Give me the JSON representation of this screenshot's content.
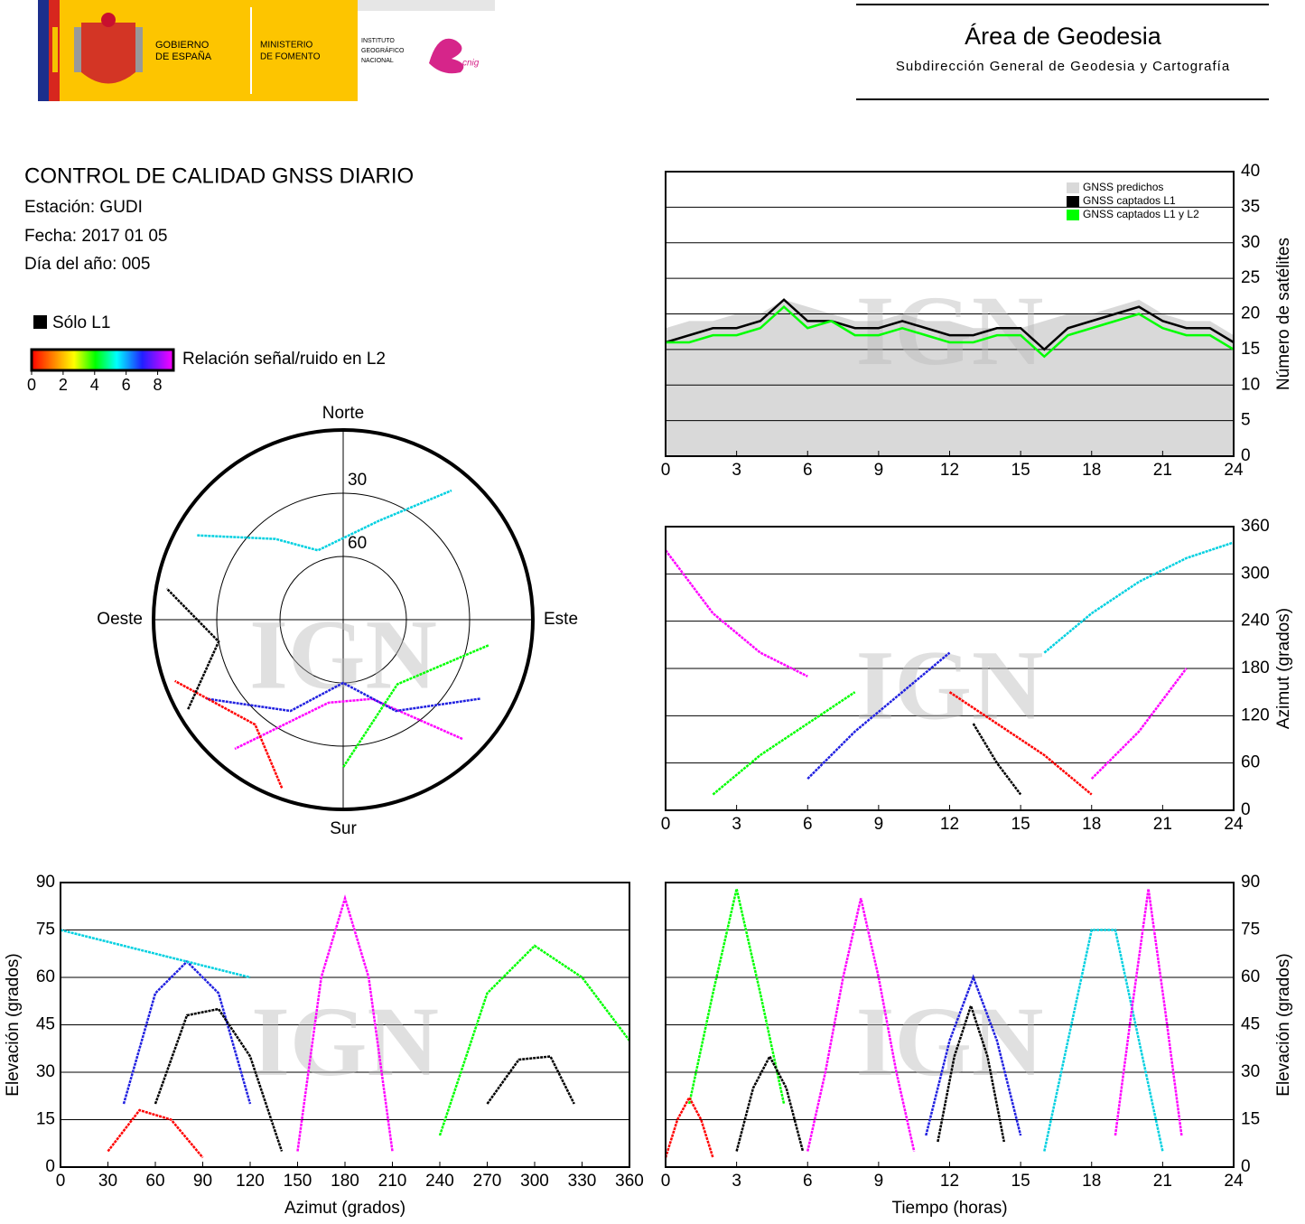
{
  "header": {
    "logo_gov": [
      "GOBIERNO",
      "DE ESPAÑA"
    ],
    "logo_ministry": [
      "MINISTERIO",
      "DE FOMENTO"
    ],
    "logo_ign": [
      "INSTITUTO",
      "GEOGRÁFICO",
      "NACIONAL"
    ],
    "logo_cnig": "cnig",
    "title": "Área de Geodesia",
    "subtitle": "Subdirección General de Geodesia y Cartografía"
  },
  "info": {
    "title": "CONTROL DE CALIDAD GNSS DIARIO",
    "station": "Estación: GUDI",
    "date": "Fecha: 2017 01 05",
    "doy": "Día del año: 005"
  },
  "legend": {
    "only_l1": "Sólo L1",
    "colorbar": {
      "label": "Relación señal/ruido en L2",
      "ticks": [
        0,
        2,
        4,
        6,
        8
      ],
      "lim": [
        0,
        9
      ]
    }
  },
  "chart_data": [
    {
      "type": "line",
      "watermark": "IGN",
      "xlim": [
        0,
        24
      ],
      "xticks": [
        0,
        3,
        6,
        9,
        12,
        15,
        18,
        21,
        24
      ],
      "ylim": [
        0,
        40
      ],
      "yticks": [
        0,
        5,
        10,
        15,
        20,
        25,
        30,
        35,
        40
      ],
      "ylabel": "Número de satélites",
      "y_axis_position": "right",
      "grid": true,
      "legend": "upper right",
      "x": [
        0,
        1,
        2,
        3,
        4,
        5,
        6,
        7,
        8,
        9,
        10,
        11,
        12,
        13,
        14,
        15,
        16,
        17,
        18,
        19,
        20,
        21,
        22,
        23,
        24
      ],
      "series": [
        {
          "name": "GNSS predichos",
          "color": "#d9d9d9",
          "style": "area",
          "values": [
            18,
            19,
            19,
            20,
            20,
            22,
            21,
            20,
            19,
            19,
            20,
            19,
            19,
            18,
            18,
            18,
            19,
            20,
            20,
            21,
            22,
            20,
            19,
            19,
            17
          ]
        },
        {
          "name": "GNSS captados L1",
          "color": "#000000",
          "values": [
            16,
            17,
            18,
            18,
            19,
            22,
            19,
            19,
            18,
            18,
            19,
            18,
            17,
            17,
            18,
            18,
            15,
            18,
            19,
            20,
            21,
            19,
            18,
            18,
            16
          ]
        },
        {
          "name": "GNSS captados L1 y L2",
          "color": "#00ff00",
          "values": [
            16,
            16,
            17,
            17,
            18,
            21,
            18,
            19,
            17,
            17,
            18,
            17,
            16,
            16,
            17,
            17,
            14,
            17,
            18,
            19,
            20,
            18,
            17,
            17,
            15
          ]
        }
      ]
    },
    {
      "type": "line",
      "watermark": "IGN",
      "xlim": [
        0,
        24
      ],
      "xticks": [
        0,
        3,
        6,
        9,
        12,
        15,
        18,
        21,
        24
      ],
      "ylim": [
        0,
        360
      ],
      "yticks": [
        0,
        60,
        120,
        180,
        240,
        300,
        360
      ],
      "ylabel": "Azimut (grados)",
      "y_axis_position": "right",
      "grid": true,
      "series": [
        {
          "color": "#ff00ff",
          "x": [
            0,
            2,
            4,
            6
          ],
          "values": [
            330,
            250,
            200,
            170
          ]
        },
        {
          "color": "#2020e0",
          "x": [
            6,
            8,
            10,
            12
          ],
          "values": [
            40,
            100,
            150,
            200
          ]
        },
        {
          "color": "#00ff00",
          "x": [
            2,
            4,
            6,
            8
          ],
          "values": [
            20,
            70,
            110,
            150
          ]
        },
        {
          "color": "#ff0000",
          "x": [
            12,
            14,
            16,
            18
          ],
          "values": [
            150,
            110,
            70,
            20
          ]
        },
        {
          "color": "#000000",
          "x": [
            13,
            14,
            15
          ],
          "values": [
            110,
            60,
            20
          ]
        },
        {
          "color": "#00d0e0",
          "x": [
            16,
            18,
            20,
            22,
            24
          ],
          "values": [
            200,
            250,
            290,
            320,
            340
          ]
        },
        {
          "color": "#ff00ff",
          "x": [
            18,
            20,
            22
          ],
          "values": [
            40,
            100,
            180
          ]
        }
      ]
    },
    {
      "type": "polar",
      "watermark": "IGN",
      "directions": [
        "Norte",
        "Este",
        "Sur",
        "Oeste"
      ],
      "rticks": [
        30,
        60
      ],
      "series": [
        {
          "color": "#ff00ff",
          "x": [
            135,
            160,
            190,
            220
          ],
          "values": [
            10,
            50,
            50,
            10
          ]
        },
        {
          "color": "#2020e0",
          "x": [
            120,
            150,
            180,
            210,
            240
          ],
          "values": [
            15,
            40,
            60,
            40,
            15
          ]
        },
        {
          "color": "#00d0e0",
          "x": [
            300,
            320,
            340,
            20,
            40
          ],
          "values": [
            10,
            40,
            55,
            40,
            10
          ]
        },
        {
          "color": "#ff0000",
          "x": [
            200,
            220,
            250
          ],
          "values": [
            5,
            25,
            5
          ]
        },
        {
          "color": "#00ff00",
          "x": [
            100,
            140,
            180
          ],
          "values": [
            20,
            50,
            20
          ]
        },
        {
          "color": "#000000",
          "x": [
            240,
            260,
            280
          ],
          "values": [
            5,
            30,
            5
          ]
        }
      ]
    },
    {
      "type": "line",
      "watermark": "IGN",
      "xlim": [
        0,
        360
      ],
      "xticks": [
        0,
        30,
        60,
        90,
        120,
        150,
        180,
        210,
        240,
        270,
        300,
        330,
        360
      ],
      "ylim": [
        0,
        90
      ],
      "yticks": [
        0,
        15,
        30,
        45,
        60,
        75,
        90
      ],
      "xlabel": "Azimut (grados)",
      "ylabel": "Elevación (grados)",
      "y_axis_position": "left",
      "grid": true,
      "series": [
        {
          "color": "#ff00ff",
          "x": [
            150,
            165,
            180,
            195,
            210
          ],
          "values": [
            5,
            60,
            85,
            60,
            5
          ]
        },
        {
          "color": "#2020e0",
          "x": [
            40,
            60,
            80,
            100,
            120
          ],
          "values": [
            20,
            55,
            65,
            55,
            20
          ]
        },
        {
          "color": "#000000",
          "x": [
            60,
            80,
            100,
            120,
            140
          ],
          "values": [
            20,
            48,
            50,
            35,
            5
          ]
        },
        {
          "color": "#ff0000",
          "x": [
            30,
            50,
            70,
            90
          ],
          "values": [
            5,
            18,
            15,
            3
          ]
        },
        {
          "color": "#00ff00",
          "x": [
            240,
            270,
            300,
            330,
            360
          ],
          "values": [
            10,
            55,
            70,
            60,
            40
          ]
        },
        {
          "color": "#000000",
          "x": [
            270,
            290,
            310,
            325
          ],
          "values": [
            20,
            34,
            35,
            20
          ]
        },
        {
          "color": "#00d0e0",
          "x": [
            0,
            40,
            80,
            120
          ],
          "values": [
            75,
            70,
            65,
            60
          ]
        }
      ]
    },
    {
      "type": "line",
      "watermark": "IGN",
      "xlim": [
        0,
        24
      ],
      "xticks": [
        0,
        3,
        6,
        9,
        12,
        15,
        18,
        21,
        24
      ],
      "ylim": [
        0,
        90
      ],
      "yticks": [
        0,
        15,
        30,
        45,
        60,
        75,
        90
      ],
      "xlabel": "Tiempo (horas)",
      "ylabel": "Elevación (grados)",
      "y_axis_position": "right",
      "grid": true,
      "series": [
        {
          "color": "#ff00ff",
          "x": [
            6,
            6.75,
            7.5,
            8.25,
            9,
            9.75,
            10.5
          ],
          "values": [
            5,
            30,
            60,
            85,
            60,
            30,
            5
          ]
        },
        {
          "color": "#2020e0",
          "x": [
            11,
            12,
            13,
            14,
            15
          ],
          "values": [
            10,
            40,
            60,
            40,
            10
          ]
        },
        {
          "color": "#00ff00",
          "x": [
            1,
            2,
            3,
            4,
            5
          ],
          "values": [
            20,
            55,
            88,
            55,
            20
          ]
        },
        {
          "color": "#ff0000",
          "x": [
            0,
            0.5,
            1,
            1.5,
            2
          ],
          "values": [
            3,
            15,
            22,
            15,
            3
          ]
        },
        {
          "color": "#000000",
          "x": [
            3,
            3.7,
            4.4,
            5.1,
            5.8
          ],
          "values": [
            5,
            25,
            35,
            25,
            5
          ]
        },
        {
          "color": "#00d0e0",
          "x": [
            16,
            17,
            18,
            19,
            20,
            21
          ],
          "values": [
            5,
            40,
            75,
            75,
            40,
            5
          ]
        },
        {
          "color": "#ff00ff",
          "x": [
            19,
            19.7,
            20.4,
            21.1,
            21.8
          ],
          "values": [
            10,
            50,
            88,
            50,
            10
          ]
        },
        {
          "color": "#000000",
          "x": [
            11.5,
            12.2,
            12.9,
            13.6,
            14.3
          ],
          "values": [
            8,
            35,
            51,
            35,
            8
          ]
        }
      ]
    }
  ]
}
